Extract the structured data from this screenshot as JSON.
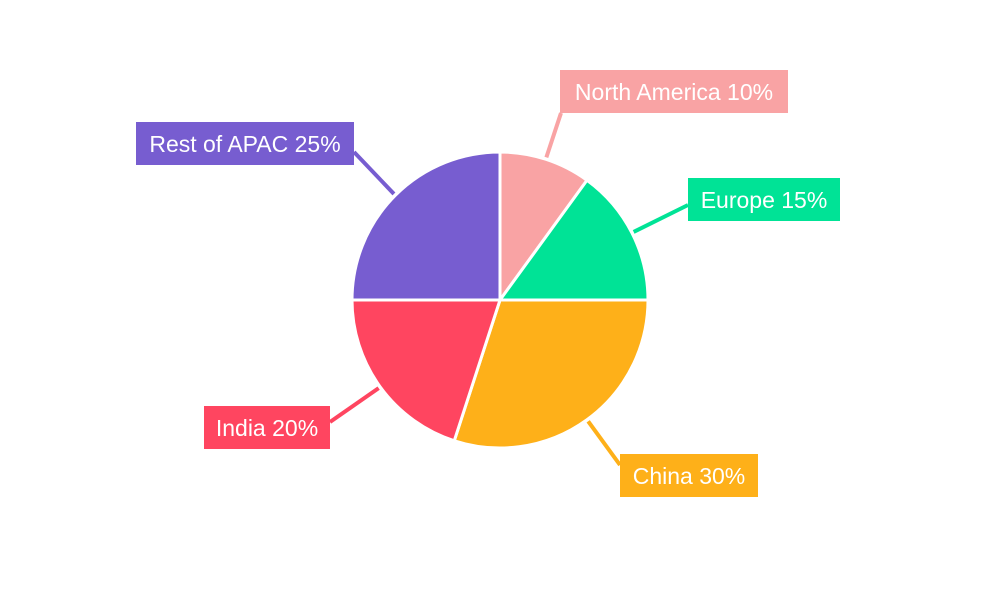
{
  "chart_data": {
    "type": "pie",
    "title": "",
    "start_angle": "top",
    "direction": "clockwise",
    "legend": "none",
    "slices": [
      {
        "label": "North America",
        "value": 10,
        "display": "North America 10%",
        "color": "#F9A3A4"
      },
      {
        "label": "Europe",
        "value": 15,
        "display": "Europe 15%",
        "color": "#00E396"
      },
      {
        "label": "China",
        "value": 30,
        "display": "China 30%",
        "color": "#FEB019"
      },
      {
        "label": "India",
        "value": 20,
        "display": "India 20%",
        "color": "#FF4560"
      },
      {
        "label": "Rest of APAC",
        "value": 25,
        "display": "Rest of APAC 25%",
        "color": "#775DD0"
      }
    ]
  }
}
